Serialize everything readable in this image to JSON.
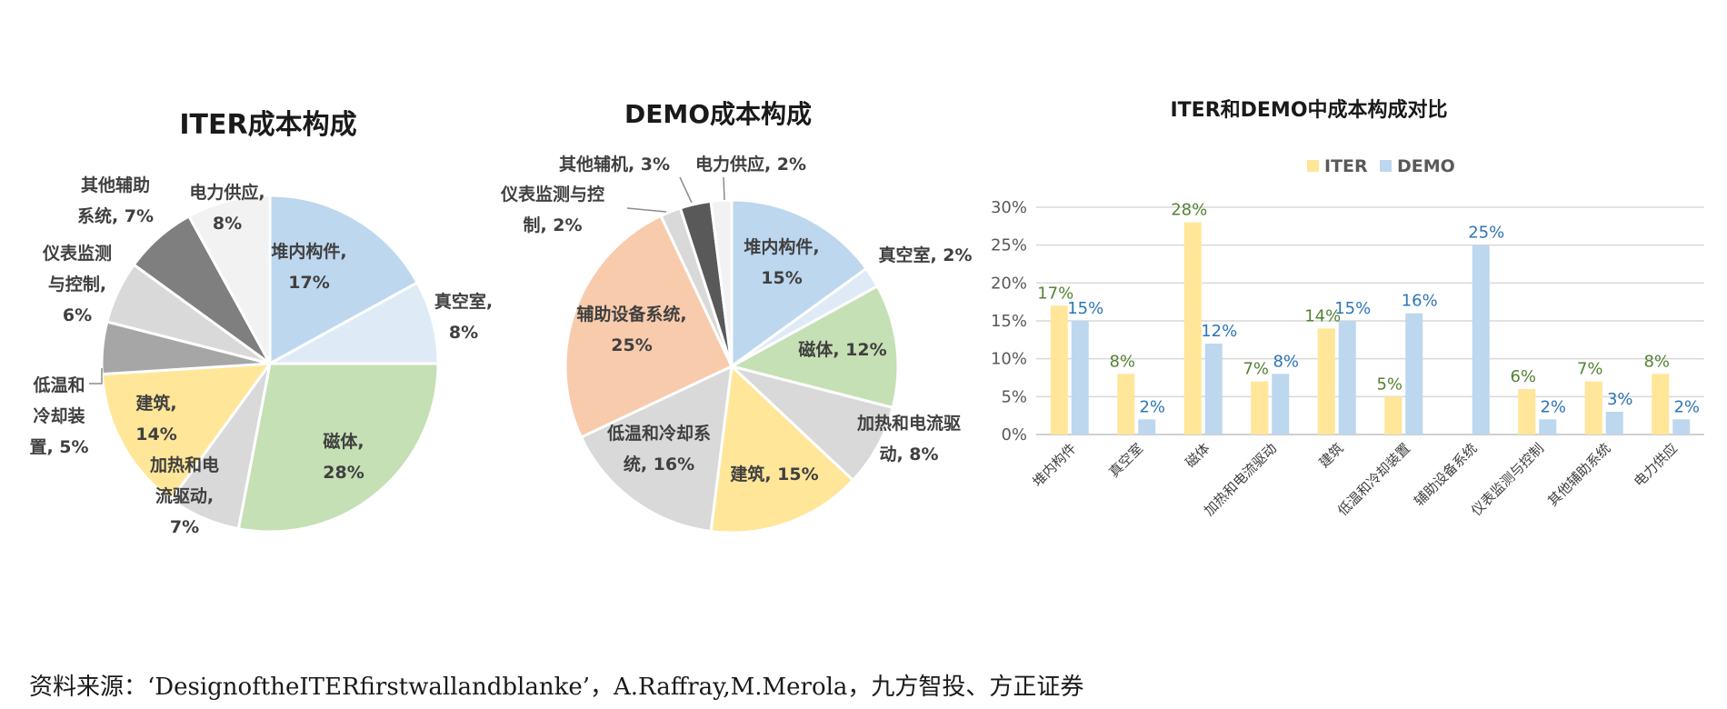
{
  "chart_data": [
    {
      "type": "pie",
      "title": "ITER成本构成",
      "slices": [
        {
          "label": "堆内构件",
          "value": 17,
          "display": "堆内构件,|17%",
          "color": "#bdd7ee"
        },
        {
          "label": "真空室",
          "value": 8,
          "display": "真空室,|8%",
          "color": "#deebf7"
        },
        {
          "label": "磁体",
          "value": 28,
          "display": "磁体,|28%",
          "color": "#c5e0b4"
        },
        {
          "label": "加热和电流驱动",
          "value": 7,
          "display": "加热和电|流驱动,|7%",
          "color": "#d9d9d9"
        },
        {
          "label": "建筑",
          "value": 14,
          "display": "建筑,|14%",
          "color": "#ffe699"
        },
        {
          "label": "低温和冷却装置",
          "value": 5,
          "display": "低温和|冷却装|置, 5%",
          "color": "#a6a6a6"
        },
        {
          "label": "仪表监测与控制",
          "value": 6,
          "display": "仪表监测|与控制,|6%",
          "color": "#d9d9d9"
        },
        {
          "label": "其他辅助系统",
          "value": 7,
          "display": "其他辅助|系统, 7%",
          "color": "#7f7f7f"
        },
        {
          "label": "电力供应",
          "value": 8,
          "display": "电力供应,|8%",
          "color": "#f2f2f2"
        }
      ]
    },
    {
      "type": "pie",
      "title": "DEMO成本构成",
      "slices": [
        {
          "label": "堆内构件",
          "value": 15,
          "display": "堆内构件,|15%",
          "color": "#bdd7ee"
        },
        {
          "label": "真空室",
          "value": 2,
          "display": "真空室, 2%",
          "color": "#deebf7"
        },
        {
          "label": "磁体",
          "value": 12,
          "display": "磁体, 12%",
          "color": "#c5e0b4"
        },
        {
          "label": "加热和电流驱动",
          "value": 8,
          "display": "加热和电流驱|动, 8%",
          "color": "#d9d9d9"
        },
        {
          "label": "建筑",
          "value": 15,
          "display": "建筑, 15%",
          "color": "#ffe699"
        },
        {
          "label": "低温和冷却系统",
          "value": 16,
          "display": "低温和冷却系|统, 16%",
          "color": "#d9d9d9"
        },
        {
          "label": "辅助设备系统",
          "value": 25,
          "display": "辅助设备系统,|25%",
          "color": "#f8cbad"
        },
        {
          "label": "仪表监测与控制",
          "value": 2,
          "display": "仪表监测与控|制, 2%",
          "color": "#d9d9d9"
        },
        {
          "label": "其他辅机",
          "value": 3,
          "display": "其他辅机, 3%",
          "color": "#595959"
        },
        {
          "label": "电力供应",
          "value": 2,
          "display": "电力供应, 2%",
          "color": "#f2f2f2"
        }
      ]
    },
    {
      "type": "bar",
      "title": "ITER和DEMO中成本构成对比",
      "categories": [
        "堆内构件",
        "真空室",
        "磁体",
        "加热和电流驱动",
        "建筑",
        "低温和冷却装置",
        "辅助设备系统",
        "仪表监测与控制",
        "其他辅助系统",
        "电力供应"
      ],
      "series": [
        {
          "name": "ITER",
          "values": [
            17,
            8,
            28,
            7,
            14,
            5,
            0,
            6,
            7,
            8
          ],
          "labels": [
            "17%",
            "8%",
            "28%",
            "7%",
            "14%",
            "5%",
            "",
            "6%",
            "7%",
            "8%"
          ],
          "color": "#ffe699",
          "label_color": "#548235"
        },
        {
          "name": "DEMO",
          "values": [
            15,
            2,
            12,
            8,
            15,
            16,
            25,
            2,
            3,
            2
          ],
          "labels": [
            "15%",
            "2%",
            "12%",
            "8%",
            "15%",
            "16%",
            "25%",
            "2%",
            "3%",
            "2%"
          ],
          "color": "#bdd7ee",
          "label_color": "#2e75b6"
        }
      ],
      "ylim": [
        0,
        30
      ],
      "yticks": [
        0,
        5,
        10,
        15,
        20,
        25,
        30
      ],
      "ytick_labels": [
        "0%",
        "5%",
        "10%",
        "15%",
        "20%",
        "25%",
        "30%"
      ],
      "grid": true,
      "legend": "top-center"
    }
  ],
  "source": "资料来源：‘DesignoftheITERfirstwallandblanke’，A.Raffray,M.Merola，九方智投、方正证券"
}
